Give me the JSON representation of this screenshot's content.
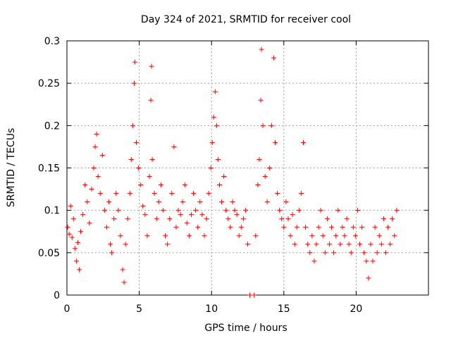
{
  "chart_data": {
    "type": "scatter",
    "title": "Day 324 of 2021, SRMTID for receiver cool",
    "xlabel": "GPS time / hours",
    "ylabel": "SRMTID / TECUs",
    "xlim": [
      0,
      25
    ],
    "ylim": [
      0,
      0.3
    ],
    "x_ticks": [
      0,
      5,
      10,
      15,
      20
    ],
    "y_ticks": [
      0,
      0.05,
      0.1,
      0.15,
      0.2,
      0.25,
      0.3
    ],
    "x_tick_labels": [
      "0",
      "5",
      "10",
      "15",
      "20"
    ],
    "y_tick_labels": [
      "0",
      "0.05",
      "0.1",
      "0.15",
      "0.2",
      "0.25",
      "0.3"
    ],
    "grid": true,
    "marker": "+",
    "marker_color": "#ff0000",
    "series": [
      {
        "name": "SRMTID",
        "points": [
          [
            0.05,
            0.08
          ],
          [
            0.15,
            0.072
          ],
          [
            0.25,
            0.105
          ],
          [
            0.35,
            0.068
          ],
          [
            0.45,
            0.09
          ],
          [
            0.55,
            0.055
          ],
          [
            0.65,
            0.04
          ],
          [
            0.75,
            0.062
          ],
          [
            0.85,
            0.03
          ],
          [
            0.95,
            0.075
          ],
          [
            1.1,
            0.095
          ],
          [
            1.25,
            0.13
          ],
          [
            1.4,
            0.11
          ],
          [
            1.55,
            0.085
          ],
          [
            1.7,
            0.125
          ],
          [
            1.85,
            0.15
          ],
          [
            1.95,
            0.175
          ],
          [
            2.05,
            0.19
          ],
          [
            2.15,
            0.14
          ],
          [
            2.3,
            0.12
          ],
          [
            2.45,
            0.165
          ],
          [
            2.6,
            0.1
          ],
          [
            2.75,
            0.08
          ],
          [
            2.9,
            0.11
          ],
          [
            3.0,
            0.06
          ],
          [
            3.1,
            0.05
          ],
          [
            3.25,
            0.09
          ],
          [
            3.4,
            0.12
          ],
          [
            3.55,
            0.1
          ],
          [
            3.7,
            0.07
          ],
          [
            3.85,
            0.03
          ],
          [
            3.95,
            0.015
          ],
          [
            4.05,
            0.06
          ],
          [
            4.2,
            0.09
          ],
          [
            4.35,
            0.12
          ],
          [
            4.45,
            0.16
          ],
          [
            4.55,
            0.2
          ],
          [
            4.65,
            0.25
          ],
          [
            4.7,
            0.275
          ],
          [
            4.8,
            0.18
          ],
          [
            4.95,
            0.15
          ],
          [
            5.1,
            0.13
          ],
          [
            5.25,
            0.105
          ],
          [
            5.4,
            0.095
          ],
          [
            5.55,
            0.07
          ],
          [
            5.7,
            0.14
          ],
          [
            5.8,
            0.23
          ],
          [
            5.85,
            0.27
          ],
          [
            5.9,
            0.16
          ],
          [
            6.05,
            0.12
          ],
          [
            6.2,
            0.09
          ],
          [
            6.35,
            0.11
          ],
          [
            6.5,
            0.13
          ],
          [
            6.65,
            0.1
          ],
          [
            6.8,
            0.07
          ],
          [
            6.95,
            0.06
          ],
          [
            7.1,
            0.09
          ],
          [
            7.25,
            0.12
          ],
          [
            7.4,
            0.175
          ],
          [
            7.55,
            0.08
          ],
          [
            7.7,
            0.1
          ],
          [
            7.85,
            0.095
          ],
          [
            8.0,
            0.11
          ],
          [
            8.15,
            0.13
          ],
          [
            8.3,
            0.085
          ],
          [
            8.45,
            0.07
          ],
          [
            8.6,
            0.095
          ],
          [
            8.75,
            0.12
          ],
          [
            8.9,
            0.1
          ],
          [
            9.05,
            0.08
          ],
          [
            9.2,
            0.11
          ],
          [
            9.35,
            0.095
          ],
          [
            9.5,
            0.07
          ],
          [
            9.65,
            0.09
          ],
          [
            9.8,
            0.12
          ],
          [
            9.95,
            0.15
          ],
          [
            10.05,
            0.18
          ],
          [
            10.15,
            0.21
          ],
          [
            10.25,
            0.24
          ],
          [
            10.35,
            0.2
          ],
          [
            10.45,
            0.16
          ],
          [
            10.55,
            0.13
          ],
          [
            10.7,
            0.11
          ],
          [
            10.85,
            0.14
          ],
          [
            11.0,
            0.1
          ],
          [
            11.15,
            0.09
          ],
          [
            11.3,
            0.08
          ],
          [
            11.45,
            0.11
          ],
          [
            11.6,
            0.1
          ],
          [
            11.75,
            0.095
          ],
          [
            11.9,
            0.07
          ],
          [
            12.05,
            0.08
          ],
          [
            12.2,
            0.09
          ],
          [
            12.35,
            0.1
          ],
          [
            12.5,
            0.06
          ],
          [
            12.65,
            0.0
          ],
          [
            12.95,
            0.0
          ],
          [
            13.05,
            0.07
          ],
          [
            13.2,
            0.13
          ],
          [
            13.3,
            0.16
          ],
          [
            13.4,
            0.23
          ],
          [
            13.45,
            0.29
          ],
          [
            13.55,
            0.2
          ],
          [
            13.7,
            0.14
          ],
          [
            13.85,
            0.11
          ],
          [
            14.0,
            0.15
          ],
          [
            14.15,
            0.2
          ],
          [
            14.3,
            0.28
          ],
          [
            14.4,
            0.18
          ],
          [
            14.55,
            0.12
          ],
          [
            14.7,
            0.1
          ],
          [
            14.85,
            0.09
          ],
          [
            15.0,
            0.08
          ],
          [
            15.15,
            0.11
          ],
          [
            15.3,
            0.09
          ],
          [
            15.45,
            0.07
          ],
          [
            15.6,
            0.095
          ],
          [
            15.75,
            0.06
          ],
          [
            15.9,
            0.08
          ],
          [
            16.05,
            0.1
          ],
          [
            16.2,
            0.12
          ],
          [
            16.35,
            0.18
          ],
          [
            16.5,
            0.08
          ],
          [
            16.65,
            0.06
          ],
          [
            16.8,
            0.05
          ],
          [
            16.95,
            0.07
          ],
          [
            17.1,
            0.04
          ],
          [
            17.25,
            0.06
          ],
          [
            17.4,
            0.08
          ],
          [
            17.55,
            0.1
          ],
          [
            17.7,
            0.07
          ],
          [
            17.85,
            0.05
          ],
          [
            18.0,
            0.09
          ],
          [
            18.15,
            0.06
          ],
          [
            18.3,
            0.08
          ],
          [
            18.45,
            0.05
          ],
          [
            18.6,
            0.07
          ],
          [
            18.75,
            0.1
          ],
          [
            18.9,
            0.06
          ],
          [
            19.05,
            0.08
          ],
          [
            19.2,
            0.07
          ],
          [
            19.35,
            0.09
          ],
          [
            19.5,
            0.06
          ],
          [
            19.65,
            0.05
          ],
          [
            19.8,
            0.08
          ],
          [
            19.95,
            0.07
          ],
          [
            20.1,
            0.1
          ],
          [
            20.25,
            0.06
          ],
          [
            20.4,
            0.08
          ],
          [
            20.55,
            0.05
          ],
          [
            20.7,
            0.04
          ],
          [
            20.85,
            0.02
          ],
          [
            21.0,
            0.06
          ],
          [
            21.15,
            0.04
          ],
          [
            21.3,
            0.08
          ],
          [
            21.45,
            0.05
          ],
          [
            21.6,
            0.07
          ],
          [
            21.75,
            0.06
          ],
          [
            21.9,
            0.09
          ],
          [
            22.05,
            0.05
          ],
          [
            22.2,
            0.08
          ],
          [
            22.35,
            0.06
          ],
          [
            22.5,
            0.09
          ],
          [
            22.65,
            0.07
          ],
          [
            22.8,
            0.1
          ]
        ]
      }
    ]
  }
}
